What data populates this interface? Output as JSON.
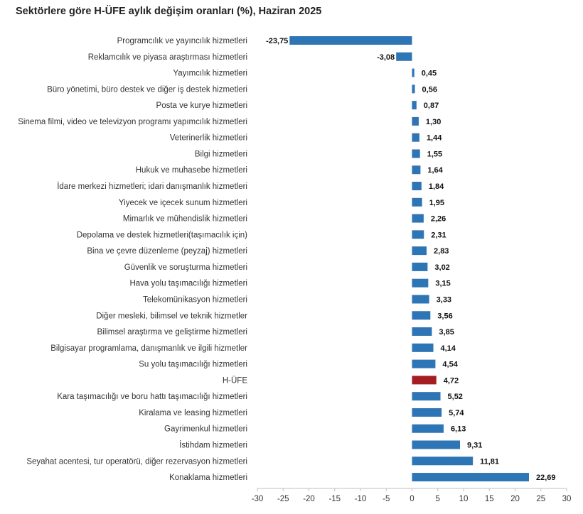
{
  "chart_data": {
    "type": "bar",
    "orientation": "horizontal",
    "title": "Sektörlere göre H-ÜFE aylık değişim oranları (%), Haziran 2025",
    "xlabel": "",
    "ylabel": "",
    "xlim": [
      -30,
      30
    ],
    "xticks": [
      -30,
      -25,
      -20,
      -15,
      -10,
      -5,
      0,
      5,
      10,
      15,
      20,
      25,
      30
    ],
    "grid": false,
    "legend": "none",
    "colors": {
      "default": "#2E75B6",
      "highlight": "#A51D21"
    },
    "highlight_category": "H-ÜFE",
    "categories": [
      "Programcılık ve yayıncılık hizmetleri",
      "Reklamcılık ve piyasa araştırması hizmetleri",
      "Yayımcılık hizmetleri",
      "Büro yönetimi, büro destek ve diğer iş destek hizmetleri",
      "Posta ve kurye hizmetleri",
      "Sinema filmi, video ve televizyon programı yapımcılık hizmetleri",
      "Veterinerlik hizmetleri",
      "Bilgi hizmetleri",
      "Hukuk ve muhasebe hizmetleri",
      "İdare merkezi hizmetleri; idari danışmanlık hizmetleri",
      "Yiyecek ve içecek sunum hizmetleri",
      "Mimarlık ve mühendislik hizmetleri",
      "Depolama ve destek hizmetleri(taşımacılık için)",
      "Bina ve çevre düzenleme (peyzaj) hizmetleri",
      "Güvenlik ve soruşturma hizmetleri",
      "Hava yolu taşımacılığı hizmetleri",
      "Telekomünikasyon hizmetleri",
      "Diğer mesleki, bilimsel ve teknik hizmetler",
      "Bilimsel araştırma ve geliştirme hizmetleri",
      "Bilgisayar programlama, danışmanlık ve ilgili hizmetler",
      "Su yolu taşımacılığı hizmetleri",
      "H-ÜFE",
      "Kara taşımacılığı ve boru hattı taşımacılığı hizmetleri",
      "Kiralama ve leasing hizmetleri",
      "Gayrimenkul hizmetleri",
      "İstihdam hizmetleri",
      "Seyahat acentesi, tur operatörü, diğer rezervasyon hizmetleri",
      "Konaklama hizmetleri"
    ],
    "values": [
      -23.75,
      -3.08,
      0.45,
      0.56,
      0.87,
      1.3,
      1.44,
      1.55,
      1.64,
      1.84,
      1.95,
      2.26,
      2.31,
      2.83,
      3.02,
      3.15,
      3.33,
      3.56,
      3.85,
      4.14,
      4.54,
      4.72,
      5.52,
      5.74,
      6.13,
      9.31,
      11.81,
      22.69
    ],
    "value_labels": [
      "-23,75",
      "-3,08",
      "0,45",
      "0,56",
      "0,87",
      "1,30",
      "1,44",
      "1,55",
      "1,64",
      "1,84",
      "1,95",
      "2,26",
      "2,31",
      "2,83",
      "3,02",
      "3,15",
      "3,33",
      "3,56",
      "3,85",
      "4,14",
      "4,54",
      "4,72",
      "5,52",
      "5,74",
      "6,13",
      "9,31",
      "11,81",
      "22,69"
    ],
    "tick_labels": [
      "-30",
      "-25",
      "-20",
      "-15",
      "-10",
      "-5",
      "0",
      "5",
      "10",
      "15",
      "20",
      "25",
      "30"
    ]
  }
}
